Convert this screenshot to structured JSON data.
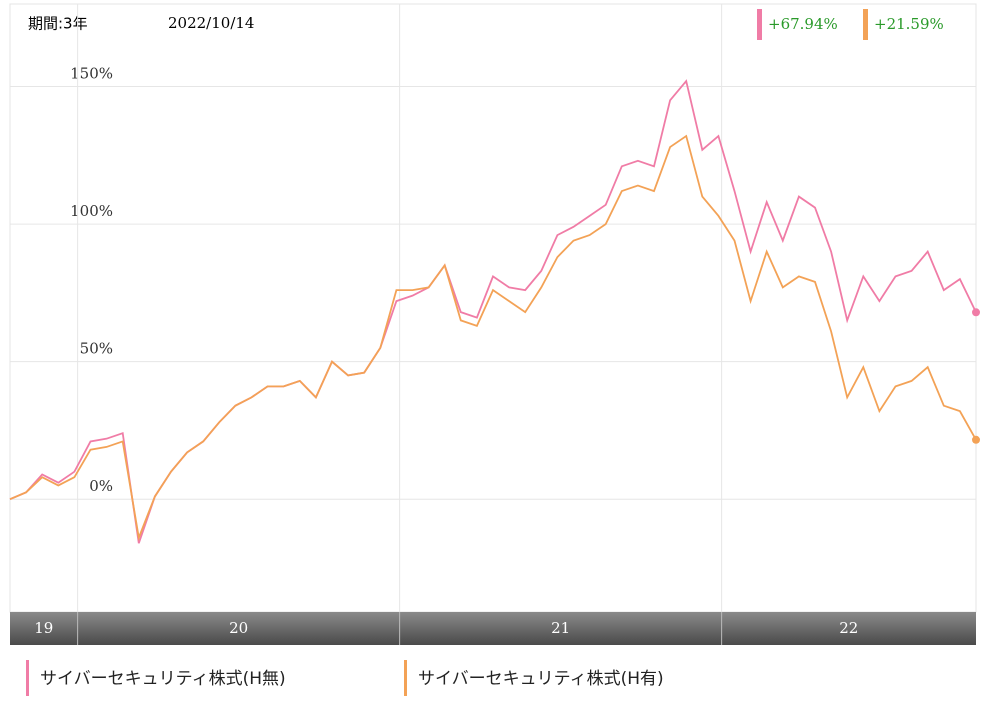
{
  "chart_data": {
    "type": "line",
    "period_label": "期間:3年",
    "date": "2022/10/14",
    "x": [
      2019.79,
      2019.84,
      2019.89,
      2019.94,
      2019.99,
      2020.04,
      2020.09,
      2020.14,
      2020.19,
      2020.24,
      2020.29,
      2020.34,
      2020.39,
      2020.44,
      2020.49,
      2020.54,
      2020.59,
      2020.64,
      2020.69,
      2020.74,
      2020.79,
      2020.84,
      2020.89,
      2020.94,
      2020.99,
      2021.04,
      2021.09,
      2021.14,
      2021.19,
      2021.24,
      2021.29,
      2021.34,
      2021.39,
      2021.44,
      2021.49,
      2021.54,
      2021.59,
      2021.64,
      2021.69,
      2021.74,
      2021.79,
      2021.84,
      2021.89,
      2021.94,
      2021.99,
      2022.04,
      2022.09,
      2022.14,
      2022.19,
      2022.24,
      2022.29,
      2022.34,
      2022.39,
      2022.44,
      2022.49,
      2022.54,
      2022.59,
      2022.64,
      2022.69,
      2022.74,
      2022.79
    ],
    "xlim": [
      2019.79,
      2022.79
    ],
    "xticks": [
      2020,
      2021,
      2022
    ],
    "year_bands": [
      "19",
      "20",
      "21",
      "22"
    ],
    "ylim": [
      -41,
      180
    ],
    "yticks": [
      {
        "value": 0,
        "label": "0%"
      },
      {
        "value": 50,
        "label": "50%"
      },
      {
        "value": 100,
        "label": "100%"
      },
      {
        "value": 150,
        "label": "150%"
      }
    ],
    "grid": true,
    "series": [
      {
        "name": "サイバーセキュリティ株式(H無)",
        "color": "#f07ca6",
        "change": 67.94,
        "change_label": "+67.94%",
        "values": [
          0,
          2.5,
          9,
          6,
          10,
          21,
          22,
          24,
          -16,
          1,
          10,
          17,
          21,
          28,
          34,
          37,
          41,
          41,
          43,
          37,
          50,
          45,
          46,
          55,
          72,
          74,
          77,
          85,
          68,
          66,
          81,
          77,
          76,
          83,
          96,
          99,
          103,
          107,
          121,
          123,
          121,
          145,
          152,
          127,
          132,
          112,
          90,
          108,
          94,
          110,
          106,
          90,
          65,
          81,
          72,
          81,
          83,
          90,
          76,
          80,
          67.94
        ]
      },
      {
        "name": "サイバーセキュリティ株式(H有)",
        "color": "#f3a256",
        "change": 21.59,
        "change_label": "+21.59%",
        "values": [
          0,
          2.5,
          8,
          5,
          8,
          18,
          19,
          21,
          -14,
          1,
          10,
          17,
          21,
          28,
          34,
          37,
          41,
          41,
          43,
          37,
          50,
          45,
          46,
          55,
          76,
          76,
          77,
          85,
          65,
          63,
          76,
          72,
          68,
          77,
          88,
          94,
          96,
          100,
          112,
          114,
          112,
          128,
          132,
          110,
          103,
          94,
          72,
          90,
          77,
          81,
          79,
          61,
          37,
          48,
          32,
          41,
          43,
          48,
          34,
          32,
          21.59
        ]
      }
    ]
  }
}
